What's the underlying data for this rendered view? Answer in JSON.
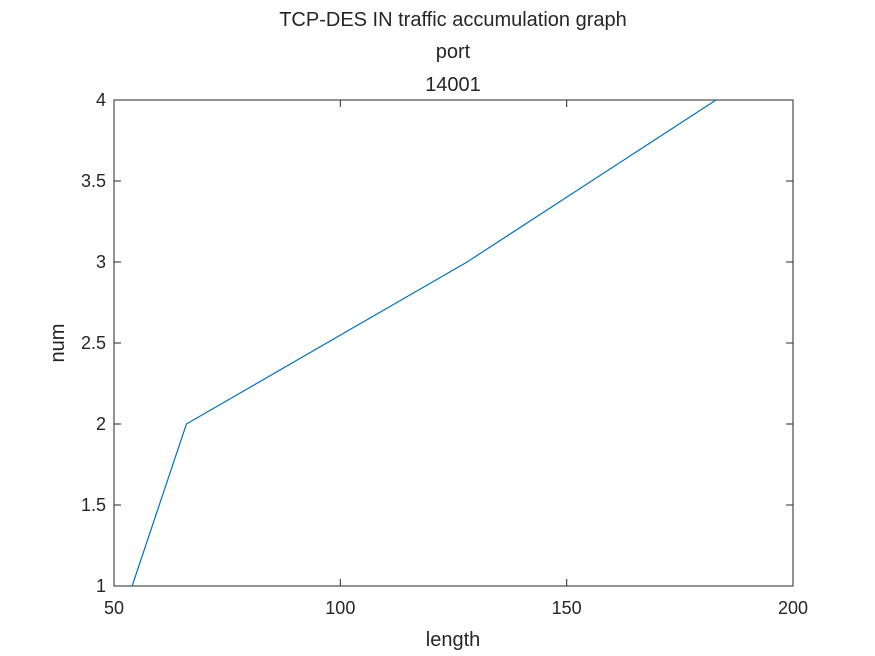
{
  "chart_data": {
    "type": "line",
    "title_lines": [
      "TCP-DES IN traffic accumulation graph",
      "port",
      "14001"
    ],
    "xlabel": "length",
    "ylabel": "num",
    "xlim": [
      50,
      200
    ],
    "ylim": [
      1,
      4
    ],
    "x_ticks": [
      50,
      100,
      150,
      200
    ],
    "y_ticks": [
      1,
      1.5,
      2,
      2.5,
      3,
      3.5,
      4
    ],
    "x_tick_labels": [
      "50",
      "100",
      "150",
      "200"
    ],
    "y_tick_labels": [
      "1",
      "1.5",
      "2",
      "2.5",
      "3",
      "3.5",
      "4"
    ],
    "grid": false,
    "series": [
      {
        "color": "#0072BD",
        "x": [
          54,
          66,
          128,
          183
        ],
        "y": [
          1,
          2,
          3,
          4
        ]
      }
    ]
  }
}
